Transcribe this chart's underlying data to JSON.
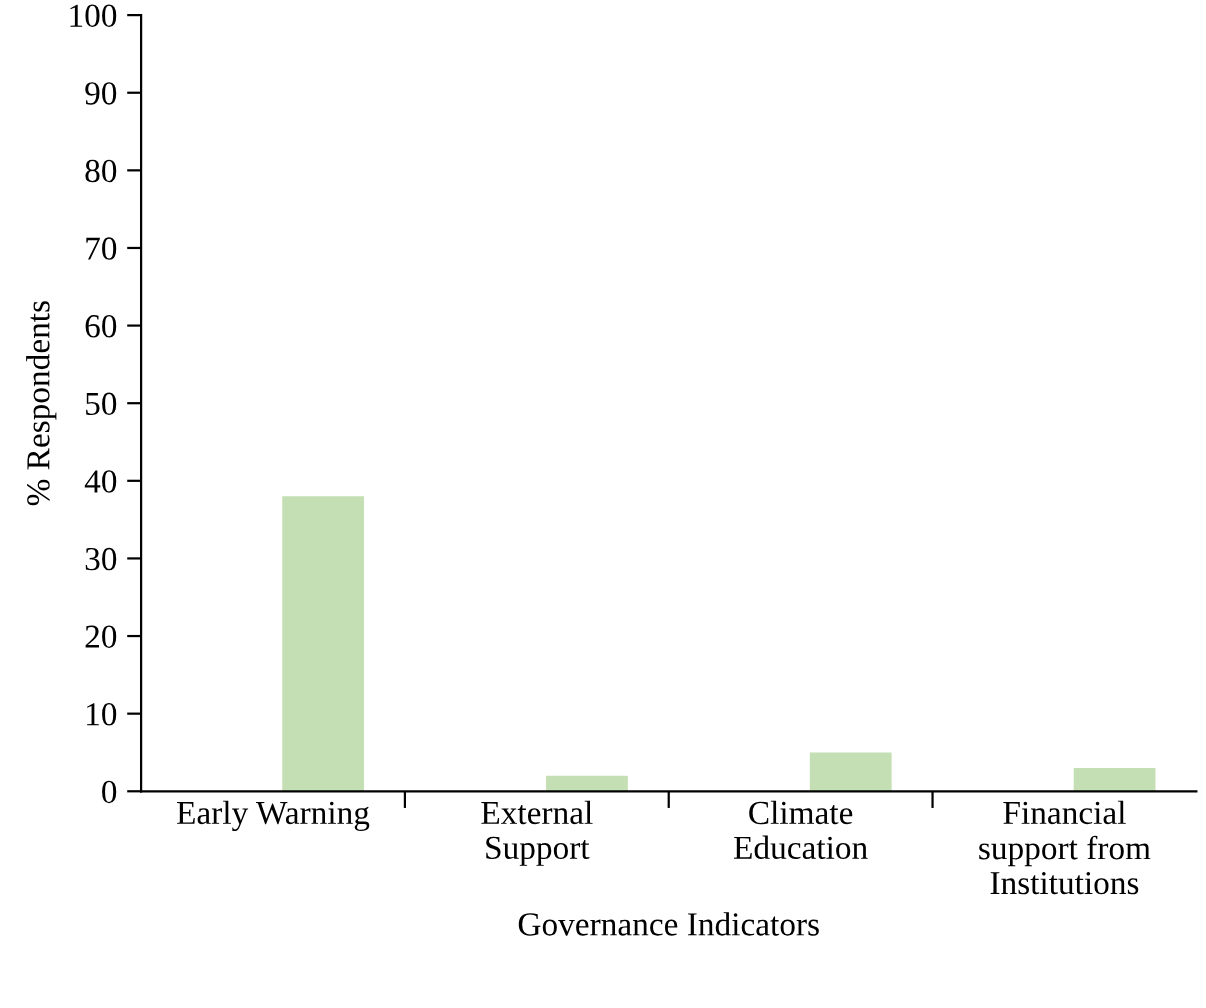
{
  "chart_data": {
    "type": "bar",
    "xlabel": "Governance Indicators",
    "ylabel": "% Respondents",
    "categories": [
      "Early Warning",
      "External\nSupport",
      "Climate\nEducation",
      "Financial\nsupport from\nInstitutions"
    ],
    "values": [
      38,
      2,
      5,
      3
    ],
    "color": "#c4dfb3",
    "ylim": [
      0,
      100
    ],
    "yticks": [
      0,
      10,
      20,
      30,
      40,
      50,
      60,
      70,
      80,
      90,
      100
    ],
    "grid": false,
    "legend": false
  }
}
